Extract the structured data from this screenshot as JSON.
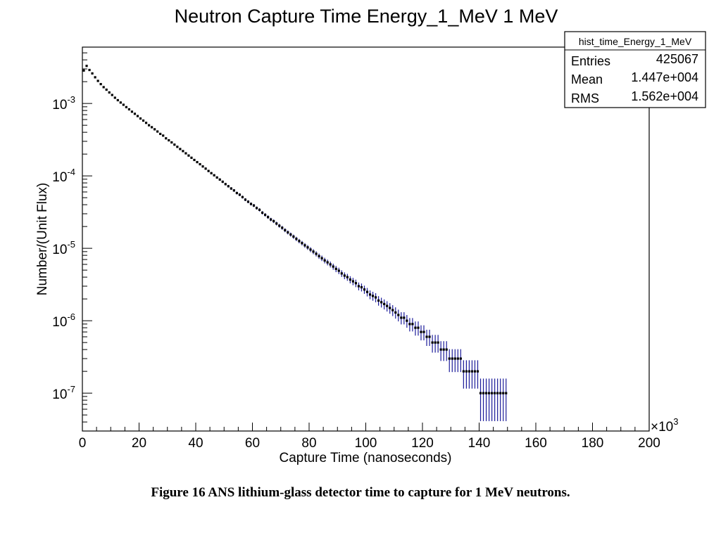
{
  "caption": "Figure 16 ANS lithium-glass detector time to capture for 1 MeV neutrons.",
  "colors": {
    "error_bar": "#1a1a99",
    "marker": "#000000",
    "frame": "#000000"
  },
  "stats": {
    "name": "hist_time_Energy_1_MeV",
    "rows": [
      {
        "label": "Entries",
        "value": "425067"
      },
      {
        "label": "Mean",
        "value": "1.447e+004"
      },
      {
        "label": "RMS",
        "value": "1.562e+004"
      }
    ]
  },
  "chart_data": {
    "type": "scatter",
    "title": "Neutron Capture Time Energy_1_MeV 1 MeV",
    "xlabel": "Capture Time  (nanoseconds)",
    "ylabel": "Number/(Unit Flux)",
    "x_multiplier": "×10",
    "x_multiplier_exp": "3",
    "xlim": [
      0,
      200
    ],
    "ylim": [
      3e-08,
      0.006
    ],
    "yscale": "log",
    "xticks": [
      "0",
      "20",
      "40",
      "60",
      "80",
      "100",
      "120",
      "140",
      "160",
      "180",
      "200"
    ],
    "yticks": [
      {
        "base": "10",
        "exp": "-3"
      },
      {
        "base": "10",
        "exp": "-4"
      },
      {
        "base": "10",
        "exp": "-5"
      },
      {
        "base": "10",
        "exp": "-6"
      },
      {
        "base": "10",
        "exp": "-7"
      }
    ],
    "series": [
      {
        "name": "hist_time_Energy_1_MeV",
        "points": [
          {
            "x": 0.5,
            "y": 0.00285
          },
          {
            "x": 1.5,
            "y": 0.0033
          },
          {
            "x": 2.5,
            "y": 0.0029
          },
          {
            "x": 3.5,
            "y": 0.0026
          },
          {
            "x": 4.5,
            "y": 0.0023
          },
          {
            "x": 5.5,
            "y": 0.00205
          },
          {
            "x": 6.5,
            "y": 0.00185
          },
          {
            "x": 7.5,
            "y": 0.00168
          },
          {
            "x": 8.5,
            "y": 0.00155
          },
          {
            "x": 9.5,
            "y": 0.00142
          },
          {
            "x": 10.5,
            "y": 0.00131
          },
          {
            "x": 11.5,
            "y": 0.0012
          },
          {
            "x": 12.5,
            "y": 0.00111
          },
          {
            "x": 13.5,
            "y": 0.00103
          },
          {
            "x": 14.5,
            "y": 0.00096
          },
          {
            "x": 15.5,
            "y": 0.00089
          },
          {
            "x": 16.5,
            "y": 0.00083
          },
          {
            "x": 17.5,
            "y": 0.00077
          },
          {
            "x": 18.5,
            "y": 0.00072
          },
          {
            "x": 19.5,
            "y": 0.00067
          },
          {
            "x": 20.5,
            "y": 0.00062
          },
          {
            "x": 21.5,
            "y": 0.00058
          },
          {
            "x": 22.5,
            "y": 0.00054
          },
          {
            "x": 23.5,
            "y": 0.0005
          },
          {
            "x": 24.5,
            "y": 0.00047
          },
          {
            "x": 25.5,
            "y": 0.00044
          },
          {
            "x": 26.5,
            "y": 0.00041
          },
          {
            "x": 27.5,
            "y": 0.00038
          },
          {
            "x": 28.5,
            "y": 0.00036
          },
          {
            "x": 29.5,
            "y": 0.00033
          },
          {
            "x": 30.5,
            "y": 0.00031
          },
          {
            "x": 31.5,
            "y": 0.00029
          },
          {
            "x": 32.5,
            "y": 0.00027
          },
          {
            "x": 33.5,
            "y": 0.000252
          },
          {
            "x": 34.5,
            "y": 0.000235
          },
          {
            "x": 35.5,
            "y": 0.00022
          },
          {
            "x": 36.5,
            "y": 0.000205
          },
          {
            "x": 37.5,
            "y": 0.000191
          },
          {
            "x": 38.5,
            "y": 0.000178
          },
          {
            "x": 39.5,
            "y": 0.000166
          },
          {
            "x": 40.5,
            "y": 0.000155
          },
          {
            "x": 41.5,
            "y": 0.000145
          },
          {
            "x": 42.5,
            "y": 0.000135
          },
          {
            "x": 43.5,
            "y": 0.000126
          },
          {
            "x": 44.5,
            "y": 0.000117
          },
          {
            "x": 45.5,
            "y": 0.000109
          },
          {
            "x": 46.5,
            "y": 0.000102
          },
          {
            "x": 47.5,
            "y": 9.5e-05
          },
          {
            "x": 48.5,
            "y": 8.9e-05
          },
          {
            "x": 49.5,
            "y": 8.3e-05
          },
          {
            "x": 50.5,
            "y": 7.7e-05
          },
          {
            "x": 51.5,
            "y": 7.2e-05
          },
          {
            "x": 52.5,
            "y": 6.7e-05
          },
          {
            "x": 53.5,
            "y": 6.3e-05
          },
          {
            "x": 54.5,
            "y": 5.8e-05
          },
          {
            "x": 55.5,
            "y": 5.5e-05
          },
          {
            "x": 56.5,
            "y": 5.1e-05
          },
          {
            "x": 57.5,
            "y": 4.7e-05
          },
          {
            "x": 58.5,
            "y": 4.4e-05
          },
          {
            "x": 59.5,
            "y": 4.1e-05
          },
          {
            "x": 60.5,
            "y": 3.9e-05
          },
          {
            "x": 61.5,
            "y": 3.6e-05
          },
          {
            "x": 62.5,
            "y": 3.4e-05
          },
          {
            "x": 63.5,
            "y": 3.1e-05
          },
          {
            "x": 64.5,
            "y": 2.9e-05
          },
          {
            "x": 65.5,
            "y": 2.7e-05
          },
          {
            "x": 66.5,
            "y": 2.5e-05
          },
          {
            "x": 67.5,
            "y": 2.37e-05
          },
          {
            "x": 68.5,
            "y": 2.2e-05
          },
          {
            "x": 69.5,
            "y": 2.05e-05
          },
          {
            "x": 70.5,
            "y": 1.92e-05
          },
          {
            "x": 71.5,
            "y": 1.78e-05
          },
          {
            "x": 72.5,
            "y": 1.66e-05
          },
          {
            "x": 73.5,
            "y": 1.55e-05
          },
          {
            "x": 74.5,
            "y": 1.45e-05
          },
          {
            "x": 75.5,
            "y": 1.35e-05
          },
          {
            "x": 76.5,
            "y": 1.26e-05
          },
          {
            "x": 77.5,
            "y": 1.18e-05
          },
          {
            "x": 78.5,
            "y": 1.1e-05
          },
          {
            "x": 79.5,
            "y": 1.03e-05
          },
          {
            "x": 80.5,
            "y": 9.6e-06
          },
          {
            "x": 81.5,
            "y": 9e-06
          },
          {
            "x": 82.5,
            "y": 8.4e-06
          },
          {
            "x": 83.5,
            "y": 7.8e-06
          },
          {
            "x": 84.5,
            "y": 7.3e-06
          },
          {
            "x": 85.5,
            "y": 6.8e-06
          },
          {
            "x": 86.5,
            "y": 6.4e-06
          },
          {
            "x": 87.5,
            "y": 6e-06
          },
          {
            "x": 88.5,
            "y": 5.6e-06
          },
          {
            "x": 89.5,
            "y": 5.2e-06
          },
          {
            "x": 90.5,
            "y": 4.9e-06
          },
          {
            "x": 91.5,
            "y": 4.5e-06
          },
          {
            "x": 92.5,
            "y": 4.2e-06
          },
          {
            "x": 93.5,
            "y": 4e-06
          },
          {
            "x": 94.5,
            "y": 3.7e-06
          },
          {
            "x": 95.5,
            "y": 3.5e-06
          },
          {
            "x": 96.5,
            "y": 3.3e-06
          },
          {
            "x": 97.5,
            "y": 3e-06
          },
          {
            "x": 98.5,
            "y": 2.9e-06
          },
          {
            "x": 99.5,
            "y": 2.7e-06
          },
          {
            "x": 100.5,
            "y": 2.5e-06
          },
          {
            "x": 101.5,
            "y": 2.3e-06
          },
          {
            "x": 102.5,
            "y": 2.2e-06
          },
          {
            "x": 103.5,
            "y": 2.1e-06
          },
          {
            "x": 104.5,
            "y": 1.9e-06
          },
          {
            "x": 105.5,
            "y": 1.8e-06
          },
          {
            "x": 106.5,
            "y": 1.7e-06
          },
          {
            "x": 107.5,
            "y": 1.6e-06
          },
          {
            "x": 108.5,
            "y": 1.5e-06
          },
          {
            "x": 109.5,
            "y": 1.4e-06
          },
          {
            "x": 110.5,
            "y": 1.3e-06
          },
          {
            "x": 111.5,
            "y": 1.2e-06
          },
          {
            "x": 112.5,
            "y": 1.1e-06
          },
          {
            "x": 113.5,
            "y": 1.1e-06
          },
          {
            "x": 114.5,
            "y": 1e-06
          },
          {
            "x": 115.5,
            "y": 9e-07
          },
          {
            "x": 116.5,
            "y": 9e-07
          },
          {
            "x": 117.5,
            "y": 8e-07
          },
          {
            "x": 118.5,
            "y": 8e-07
          },
          {
            "x": 119.5,
            "y": 7e-07
          },
          {
            "x": 120.5,
            "y": 7e-07
          },
          {
            "x": 121.5,
            "y": 6e-07
          },
          {
            "x": 122.5,
            "y": 6e-07
          },
          {
            "x": 123.5,
            "y": 5e-07
          },
          {
            "x": 124.5,
            "y": 5e-07
          },
          {
            "x": 125.5,
            "y": 5e-07
          },
          {
            "x": 126.5,
            "y": 4e-07
          },
          {
            "x": 127.5,
            "y": 4e-07
          },
          {
            "x": 128.5,
            "y": 4e-07
          },
          {
            "x": 129.5,
            "y": 3e-07
          },
          {
            "x": 130.5,
            "y": 3e-07
          },
          {
            "x": 131.5,
            "y": 3e-07
          },
          {
            "x": 132.5,
            "y": 3e-07
          },
          {
            "x": 133.5,
            "y": 3e-07
          },
          {
            "x": 134.5,
            "y": 2e-07
          },
          {
            "x": 135.5,
            "y": 2e-07
          },
          {
            "x": 136.5,
            "y": 2e-07
          },
          {
            "x": 137.5,
            "y": 2e-07
          },
          {
            "x": 138.5,
            "y": 2e-07
          },
          {
            "x": 139.5,
            "y": 2e-07
          },
          {
            "x": 140.5,
            "y": 1e-07
          },
          {
            "x": 141.5,
            "y": 1e-07
          },
          {
            "x": 142.5,
            "y": 1e-07
          },
          {
            "x": 143.5,
            "y": 1e-07
          },
          {
            "x": 144.5,
            "y": 1e-07
          },
          {
            "x": 145.5,
            "y": 1e-07
          },
          {
            "x": 146.5,
            "y": 1e-07
          },
          {
            "x": 147.5,
            "y": 1e-07
          },
          {
            "x": 148.5,
            "y": 1e-07
          },
          {
            "x": 149.5,
            "y": 1e-07
          }
        ]
      }
    ]
  }
}
